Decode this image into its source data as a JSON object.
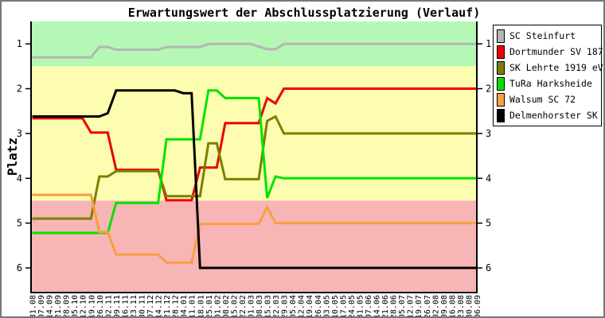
{
  "chart_data": {
    "type": "line",
    "title": "Erwartungswert der Abschlussplatzierung (Verlauf)",
    "ylabel": "Platz",
    "y_axis": {
      "ticks": [
        1,
        2,
        3,
        4,
        5,
        6
      ],
      "inverted": true,
      "range": [
        0.5,
        6.55
      ],
      "tick_sides": "both"
    },
    "x_labels": [
      "31.08",
      "07.09",
      "14.09",
      "21.09",
      "28.09",
      "05.10",
      "12.10",
      "19.10",
      "26.10",
      "02.11",
      "09.11",
      "16.11",
      "23.11",
      "30.11",
      "07.12",
      "14.12",
      "21.12",
      "28.12",
      "04.01",
      "11.01",
      "18.01",
      "25.01",
      "01.02",
      "08.02",
      "15.02",
      "22.02",
      "01.03",
      "08.03",
      "15.03",
      "22.03",
      "29.03",
      "05.04",
      "12.04",
      "19.04",
      "26.04",
      "03.05",
      "10.05",
      "17.05",
      "24.05",
      "31.05",
      "07.06",
      "14.06",
      "21.06",
      "28.06",
      "05.07",
      "12.07",
      "19.07",
      "26.07",
      "02.08",
      "09.08",
      "16.08",
      "23.08",
      "30.08",
      "06.09"
    ],
    "bands": [
      {
        "from": 0.5,
        "to": 1.5,
        "color": "#b5f7b5"
      },
      {
        "from": 1.5,
        "to": 4.5,
        "color": "#fdfdb0"
      },
      {
        "from": 4.5,
        "to": 6.55,
        "color": "#f7b5b5"
      }
    ],
    "legend": {
      "position": "right"
    },
    "series": [
      {
        "name": "SC Steinfurt",
        "color": "#b5b5b5",
        "values": [
          1.3,
          1.3,
          1.3,
          1.3,
          1.3,
          1.3,
          1.3,
          1.3,
          1.07,
          1.07,
          1.13,
          1.13,
          1.13,
          1.13,
          1.13,
          1.13,
          1.07,
          1.07,
          1.07,
          1.07,
          1.07,
          1.0,
          1.0,
          1.0,
          1.0,
          1.0,
          1.0,
          1.06,
          1.12,
          1.12,
          1.0,
          1.0,
          1.0,
          1.0,
          1.0,
          1.0,
          1.0,
          1.0,
          1.0,
          1.0,
          1.0,
          1.0,
          1.0,
          1.0,
          1.0,
          1.0,
          1.0,
          1.0,
          1.0,
          1.0,
          1.0,
          1.0,
          1.0,
          1.0
        ]
      },
      {
        "name": "Dortmunder SV 1875",
        "color": "#ee0000",
        "values": [
          2.66,
          2.66,
          2.66,
          2.66,
          2.66,
          2.66,
          2.66,
          2.98,
          2.98,
          2.98,
          3.81,
          3.81,
          3.81,
          3.81,
          3.81,
          3.81,
          4.49,
          4.49,
          4.49,
          4.49,
          3.76,
          3.76,
          3.76,
          2.77,
          2.77,
          2.77,
          2.77,
          2.77,
          2.21,
          2.33,
          2.0,
          2.0,
          2.0,
          2.0,
          2.0,
          2.0,
          2.0,
          2.0,
          2.0,
          2.0,
          2.0,
          2.0,
          2.0,
          2.0,
          2.0,
          2.0,
          2.0,
          2.0,
          2.0,
          2.0,
          2.0,
          2.0,
          2.0,
          2.0
        ]
      },
      {
        "name": "SK Lehrte 1919 eV 2",
        "color": "#7e7e00",
        "values": [
          4.9,
          4.9,
          4.9,
          4.9,
          4.9,
          4.9,
          4.9,
          4.9,
          3.96,
          3.96,
          3.84,
          3.84,
          3.84,
          3.84,
          3.84,
          3.84,
          4.4,
          4.4,
          4.4,
          4.4,
          4.4,
          3.22,
          3.22,
          4.02,
          4.02,
          4.02,
          4.02,
          4.02,
          2.72,
          2.62,
          3.0,
          3.0,
          3.0,
          3.0,
          3.0,
          3.0,
          3.0,
          3.0,
          3.0,
          3.0,
          3.0,
          3.0,
          3.0,
          3.0,
          3.0,
          3.0,
          3.0,
          3.0,
          3.0,
          3.0,
          3.0,
          3.0,
          3.0,
          3.0
        ]
      },
      {
        "name": "TuRa Harksheide",
        "color": "#00e300",
        "values": [
          5.22,
          5.22,
          5.22,
          5.22,
          5.22,
          5.22,
          5.22,
          5.22,
          5.22,
          5.22,
          4.55,
          4.55,
          4.55,
          4.55,
          4.55,
          4.55,
          3.13,
          3.13,
          3.13,
          3.13,
          3.13,
          2.04,
          2.04,
          2.21,
          2.21,
          2.21,
          2.21,
          2.21,
          4.44,
          3.96,
          4.0,
          4.0,
          4.0,
          4.0,
          4.0,
          4.0,
          4.0,
          4.0,
          4.0,
          4.0,
          4.0,
          4.0,
          4.0,
          4.0,
          4.0,
          4.0,
          4.0,
          4.0,
          4.0,
          4.0,
          4.0,
          4.0,
          4.0,
          4.0
        ]
      },
      {
        "name": "Walsum SC 72",
        "color": "#f89f40",
        "values": [
          4.37,
          4.37,
          4.37,
          4.37,
          4.37,
          4.37,
          4.37,
          4.37,
          5.2,
          5.2,
          5.7,
          5.7,
          5.7,
          5.7,
          5.7,
          5.7,
          5.88,
          5.88,
          5.88,
          5.88,
          5.02,
          5.02,
          5.02,
          5.02,
          5.02,
          5.02,
          5.02,
          5.02,
          4.65,
          5.0,
          5.0,
          5.0,
          5.0,
          5.0,
          5.0,
          5.0,
          5.0,
          5.0,
          5.0,
          5.0,
          5.0,
          5.0,
          5.0,
          5.0,
          5.0,
          5.0,
          5.0,
          5.0,
          5.0,
          5.0,
          5.0,
          5.0,
          5.0,
          5.0
        ]
      },
      {
        "name": "Delmenhorster SK 2",
        "color": "#000000",
        "values": [
          2.62,
          2.62,
          2.62,
          2.62,
          2.62,
          2.62,
          2.62,
          2.62,
          2.62,
          2.55,
          2.04,
          2.04,
          2.04,
          2.04,
          2.04,
          2.04,
          2.04,
          2.04,
          2.1,
          2.1,
          6.0,
          6.0,
          6.0,
          6.0,
          6.0,
          6.0,
          6.0,
          6.0,
          6.0,
          6.0,
          6.0,
          6.0,
          6.0,
          6.0,
          6.0,
          6.0,
          6.0,
          6.0,
          6.0,
          6.0,
          6.0,
          6.0,
          6.0,
          6.0,
          6.0,
          6.0,
          6.0,
          6.0,
          6.0,
          6.0,
          6.0,
          6.0,
          6.0,
          6.0
        ]
      }
    ]
  }
}
